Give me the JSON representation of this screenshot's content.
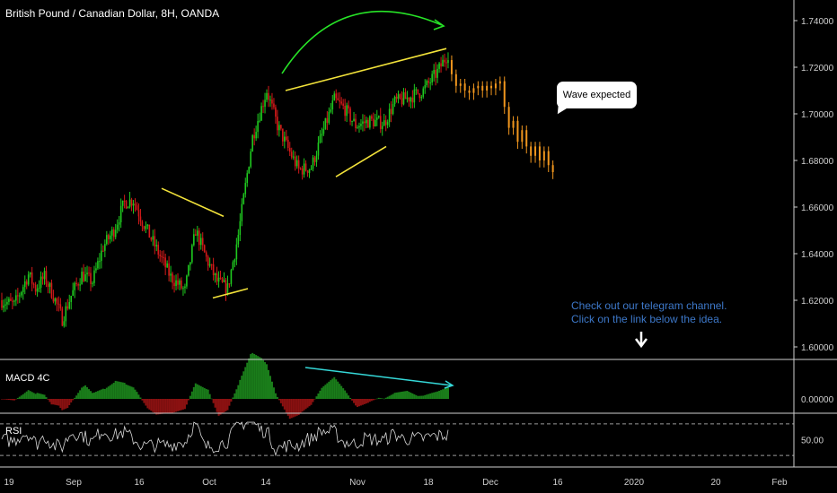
{
  "header": {
    "title": "British Pound / Canadian Dollar, 8H, OANDA"
  },
  "panels": {
    "macd_label": "MACD 4C",
    "rsi_label": "RSI"
  },
  "annotations": {
    "bubble_text": "Wave expected",
    "note_line1": "Check out our telegram channel.",
    "note_line2": "Click on the link below the idea."
  },
  "colors": {
    "up": "#1fc91f",
    "down": "#d41a1a",
    "projection": "#f0961e",
    "trendline": "#f2e23a",
    "arc": "#27e427",
    "macd_line": "#35d8d8",
    "macd_pos": "#1a7d1a",
    "macd_pos_bright": "#22a822",
    "macd_neg": "#8a1111",
    "background": "#000000",
    "axis_text": "#d0d0d0"
  },
  "chart_data": [
    {
      "type": "candlestick",
      "title": "British Pound / Canadian Dollar, 8H, OANDA",
      "ylim": [
        1.595,
        1.745
      ],
      "y_ticks": [
        "1.74000",
        "1.72000",
        "1.70000",
        "1.68000",
        "1.66000",
        "1.64000",
        "1.62000",
        "1.60000"
      ],
      "x_ticks": [
        "19",
        "Sep",
        "16",
        "Oct",
        "14",
        "Nov",
        "18",
        "Dec",
        "16",
        "2020",
        "20",
        "Feb"
      ],
      "waypoints": [
        [
          0,
          1.62
        ],
        [
          8,
          1.618
        ],
        [
          16,
          1.631
        ],
        [
          20,
          1.625
        ],
        [
          25,
          1.63
        ],
        [
          30,
          1.622
        ],
        [
          35,
          1.612
        ],
        [
          40,
          1.622
        ],
        [
          46,
          1.631
        ],
        [
          52,
          1.628
        ],
        [
          58,
          1.643
        ],
        [
          64,
          1.65
        ],
        [
          70,
          1.662
        ],
        [
          75,
          1.663
        ],
        [
          80,
          1.654
        ],
        [
          88,
          1.642
        ],
        [
          96,
          1.63
        ],
        [
          104,
          1.624
        ],
        [
          110,
          1.65
        ],
        [
          116,
          1.638
        ],
        [
          122,
          1.628
        ],
        [
          128,
          1.625
        ],
        [
          134,
          1.648
        ],
        [
          142,
          1.69
        ],
        [
          150,
          1.71
        ],
        [
          156,
          1.695
        ],
        [
          162,
          1.685
        ],
        [
          168,
          1.676
        ],
        [
          175,
          1.677
        ],
        [
          182,
          1.693
        ],
        [
          188,
          1.706
        ],
        [
          194,
          1.702
        ],
        [
          200,
          1.695
        ],
        [
          208,
          1.697
        ],
        [
          216,
          1.696
        ],
        [
          222,
          1.705
        ],
        [
          230,
          1.707
        ],
        [
          238,
          1.71
        ],
        [
          246,
          1.718
        ],
        [
          252,
          1.726
        ]
      ],
      "projection": [
        1.717,
        1.712,
        1.713,
        1.71,
        1.709,
        1.711,
        1.712,
        1.71,
        1.712,
        1.711,
        1.713,
        1.714,
        1.703,
        1.694,
        1.697,
        1.688,
        1.693,
        1.686,
        1.682,
        1.686,
        1.68,
        1.684,
        1.678,
        1.675
      ],
      "trendlines": [
        [
          [
            0,
            1.67
          ],
          [
            64,
            1.656
          ]
        ],
        [
          [
            64,
            1.656
          ],
          [
            0,
            1.67
          ]
        ]
      ]
    },
    {
      "type": "bar",
      "title": "MACD 4C",
      "ylim": [
        -0.012,
        0.025
      ],
      "y_ticks": [
        "0.00000"
      ]
    },
    {
      "type": "line",
      "title": "RSI",
      "ylim": [
        20,
        80
      ],
      "y_ticks": [
        "50.00"
      ],
      "reference_levels": [
        70,
        30
      ]
    }
  ]
}
